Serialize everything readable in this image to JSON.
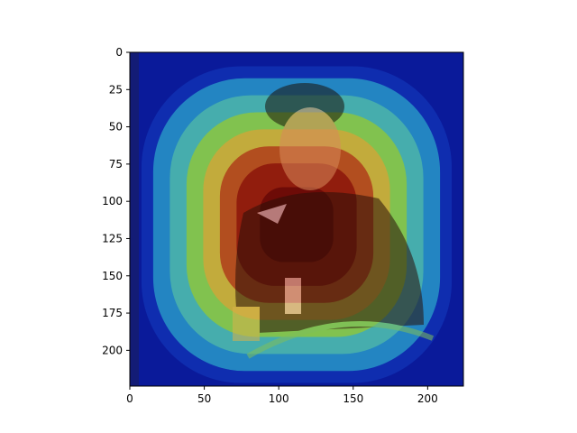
{
  "chart_data": {
    "type": "heatmap",
    "title": "",
    "xlabel": "",
    "ylabel": "",
    "xlim": [
      0,
      224
    ],
    "ylim": [
      224,
      0
    ],
    "x_ticks": [
      0,
      50,
      100,
      150,
      200
    ],
    "y_ticks": [
      0,
      25,
      50,
      75,
      100,
      125,
      150,
      175,
      200
    ],
    "x_tick_labels": [
      "0",
      "50",
      "100",
      "150",
      "200"
    ],
    "y_tick_labels": [
      "0",
      "25",
      "50",
      "75",
      "100",
      "125",
      "150",
      "175",
      "200"
    ],
    "colormap": "jet",
    "grid": false,
    "heatmap_peak": {
      "x": 112,
      "y": 112
    },
    "colors": {
      "low": "#0a1a9a",
      "mid_low": "#2ba3c8",
      "mid": "#8cc63e",
      "mid_high": "#c9a93a",
      "high": "#8f1a0d",
      "peak": "#6b0b07"
    }
  }
}
